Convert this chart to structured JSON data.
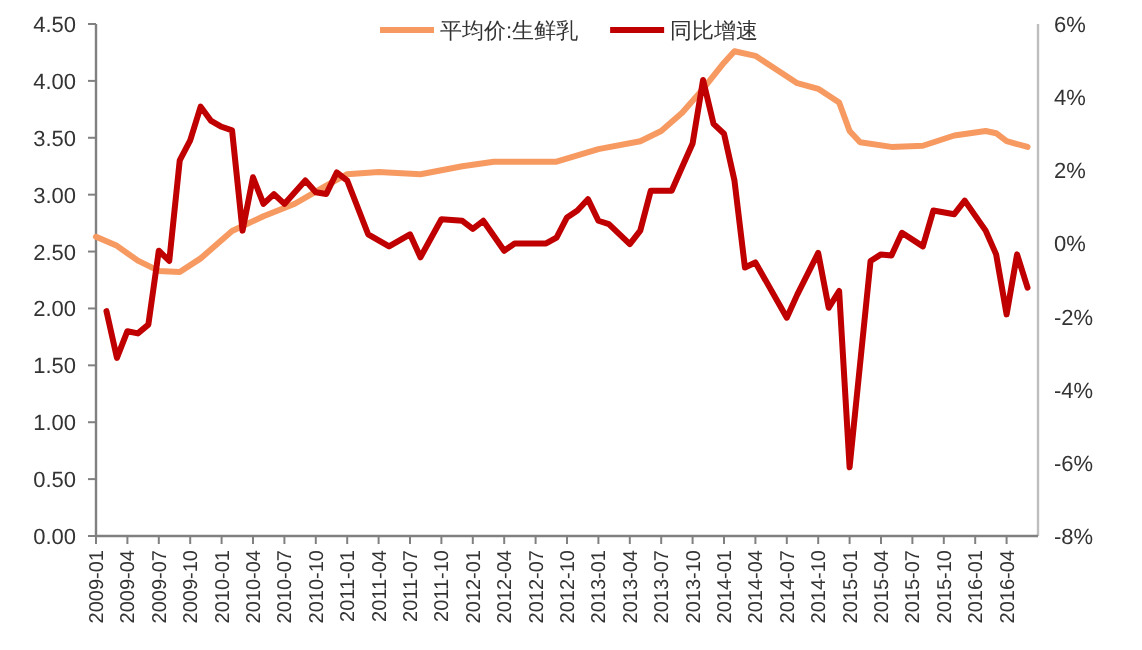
{
  "chart_data": {
    "type": "line",
    "legend": "top",
    "grid": false,
    "xlim": [
      "2009-01",
      "2016-07"
    ],
    "xticks": [
      "2009-01",
      "2009-04",
      "2009-07",
      "2009-10",
      "2010-01",
      "2010-04",
      "2010-07",
      "2010-10",
      "2011-01",
      "2011-04",
      "2011-07",
      "2011-10",
      "2012-01",
      "2012-04",
      "2012-07",
      "2012-10",
      "2013-01",
      "2013-04",
      "2013-07",
      "2013-10",
      "2014-01",
      "2014-04",
      "2014-07",
      "2014-10",
      "2015-01",
      "2015-04",
      "2015-07",
      "2015-10",
      "2016-01",
      "2016-04"
    ],
    "ylim": [
      0,
      4.5
    ],
    "yticks": [
      {
        "value": 0,
        "label": "0.00"
      },
      {
        "value": 0.5,
        "label": "0.50"
      },
      {
        "value": 1,
        "label": "1.00"
      },
      {
        "value": 1.5,
        "label": "1.50"
      },
      {
        "value": 2,
        "label": "2.00"
      },
      {
        "value": 2.5,
        "label": "2.50"
      },
      {
        "value": 3,
        "label": "3.00"
      },
      {
        "value": 3.5,
        "label": "3.50"
      },
      {
        "value": 4,
        "label": "4.00"
      },
      {
        "value": 4.5,
        "label": "4.50"
      }
    ],
    "y2lim": [
      -8,
      6
    ],
    "y2ticks": [
      {
        "value": -8,
        "label": "-8%"
      },
      {
        "value": -6,
        "label": "-6%"
      },
      {
        "value": -4,
        "label": "-4%"
      },
      {
        "value": -2,
        "label": "-2%"
      },
      {
        "value": 0,
        "label": "0%"
      },
      {
        "value": 2,
        "label": "2%"
      },
      {
        "value": 4,
        "label": "4%"
      },
      {
        "value": 6,
        "label": "6%"
      }
    ],
    "series": [
      {
        "name": "平均价:生鲜乳",
        "color": "#f79a62",
        "x": [
          "2009-01",
          "2009-03",
          "2009-05",
          "2009-07",
          "2009-09",
          "2009-11",
          "2010-02",
          "2010-05",
          "2010-08",
          "2010-11",
          "2011-01",
          "2011-04",
          "2011-08",
          "2011-12",
          "2012-03",
          "2012-09",
          "2013-01",
          "2013-05",
          "2013-07",
          "2013-09",
          "2013-11",
          "2014-01",
          "2014-02",
          "2014-04",
          "2014-06",
          "2014-08",
          "2014-10",
          "2014-12",
          "2015-01",
          "2015-02",
          "2015-05",
          "2015-08",
          "2015-11",
          "2016-02",
          "2016-03",
          "2016-04",
          "2016-06"
        ],
        "values": [
          2.63,
          2.55,
          2.42,
          2.33,
          2.32,
          2.44,
          2.68,
          2.81,
          2.92,
          3.08,
          3.18,
          3.2,
          3.18,
          3.25,
          3.29,
          3.29,
          3.4,
          3.47,
          3.56,
          3.72,
          3.93,
          4.16,
          4.26,
          4.22,
          4.1,
          3.98,
          3.93,
          3.81,
          3.56,
          3.46,
          3.42,
          3.43,
          3.52,
          3.56,
          3.54,
          3.47,
          3.42
        ]
      },
      {
        "name": "同比增速",
        "color": "#c00000",
        "axis": "y2",
        "x": [
          "2009-02",
          "2009-03",
          "2009-04",
          "2009-05",
          "2009-06",
          "2009-07",
          "2009-08",
          "2009-09",
          "2009-10",
          "2009-11",
          "2009-12",
          "2010-01",
          "2010-02",
          "2010-03",
          "2010-04",
          "2010-05",
          "2010-06",
          "2010-07",
          "2010-09",
          "2010-10",
          "2010-11",
          "2010-12",
          "2011-01",
          "2011-03",
          "2011-05",
          "2011-07",
          "2011-08",
          "2011-10",
          "2011-12",
          "2012-01",
          "2012-02",
          "2012-04",
          "2012-05",
          "2012-08",
          "2012-09",
          "2012-10",
          "2012-11",
          "2012-12",
          "2013-01",
          "2013-02",
          "2013-04",
          "2013-05",
          "2013-06",
          "2013-08",
          "2013-09",
          "2013-10",
          "2013-11",
          "2013-12",
          "2014-01",
          "2014-02",
          "2014-03",
          "2014-04",
          "2014-07",
          "2014-08",
          "2014-10",
          "2014-11",
          "2014-12",
          "2015-01",
          "2015-03",
          "2015-04",
          "2015-05",
          "2015-06",
          "2015-08",
          "2015-09",
          "2015-11",
          "2015-12",
          "2016-02",
          "2016-03",
          "2016-04",
          "2016-05",
          "2016-06"
        ],
        "values": [
          -1.85,
          -3.13,
          -2.4,
          -2.46,
          -2.22,
          -0.2,
          -0.48,
          2.27,
          2.82,
          3.74,
          3.35,
          3.19,
          3.09,
          0.35,
          1.81,
          1.08,
          1.35,
          1.08,
          1.72,
          1.4,
          1.35,
          1.94,
          1.72,
          0.25,
          -0.08,
          0.25,
          -0.38,
          0.66,
          0.62,
          0.4,
          0.62,
          -0.2,
          0,
          0,
          0.16,
          0.71,
          0.9,
          1.21,
          0.62,
          0.53,
          -0.02,
          0.35,
          1.44,
          1.44,
          2.09,
          2.73,
          4.47,
          3.27,
          3.0,
          1.72,
          -0.66,
          -0.52,
          -2.03,
          -1.4,
          -0.26,
          -1.76,
          -1.3,
          -6.12,
          -0.48,
          -0.3,
          -0.33,
          0.29,
          -0.08,
          0.9,
          0.8,
          1.17,
          0.35,
          -0.3,
          -1.94,
          -0.3,
          -1.21
        ]
      }
    ]
  }
}
